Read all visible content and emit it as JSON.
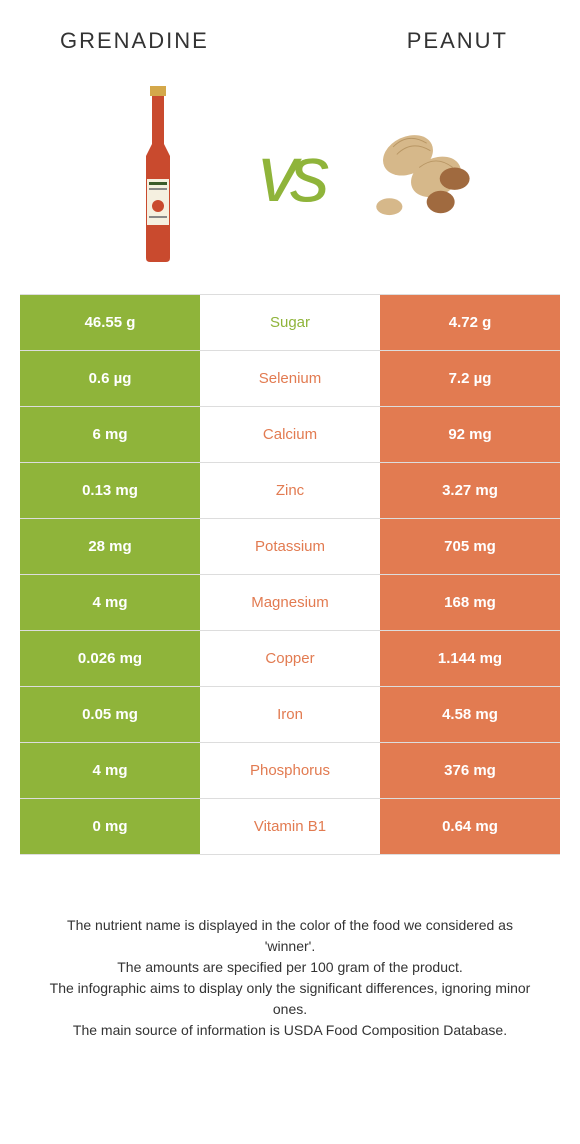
{
  "header": {
    "left_title": "Grenadine",
    "right_title": "Peanut",
    "vs": "vs"
  },
  "colors": {
    "left": "#8fb43a",
    "right": "#e27b51",
    "row_border": "#dddddd",
    "text": "#333333"
  },
  "rows": [
    {
      "label": "Sugar",
      "left": "46.55 g",
      "right": "4.72 g",
      "winner": "left"
    },
    {
      "label": "Selenium",
      "left": "0.6 µg",
      "right": "7.2 µg",
      "winner": "right"
    },
    {
      "label": "Calcium",
      "left": "6 mg",
      "right": "92 mg",
      "winner": "right"
    },
    {
      "label": "Zinc",
      "left": "0.13 mg",
      "right": "3.27 mg",
      "winner": "right"
    },
    {
      "label": "Potassium",
      "left": "28 mg",
      "right": "705 mg",
      "winner": "right"
    },
    {
      "label": "Magnesium",
      "left": "4 mg",
      "right": "168 mg",
      "winner": "right"
    },
    {
      "label": "Copper",
      "left": "0.026 mg",
      "right": "1.144 mg",
      "winner": "right"
    },
    {
      "label": "Iron",
      "left": "0.05 mg",
      "right": "4.58 mg",
      "winner": "right"
    },
    {
      "label": "Phosphorus",
      "left": "4 mg",
      "right": "376 mg",
      "winner": "right"
    },
    {
      "label": "Vitamin B1",
      "left": "0 mg",
      "right": "0.64 mg",
      "winner": "right"
    }
  ],
  "footnotes": [
    "The nutrient name is displayed in the color of the food we considered as 'winner'.",
    "The amounts are specified per 100 gram of the product.",
    "The infographic aims to display only the significant differences, ignoring minor ones.",
    "The main source of information is USDA Food Composition Database."
  ]
}
